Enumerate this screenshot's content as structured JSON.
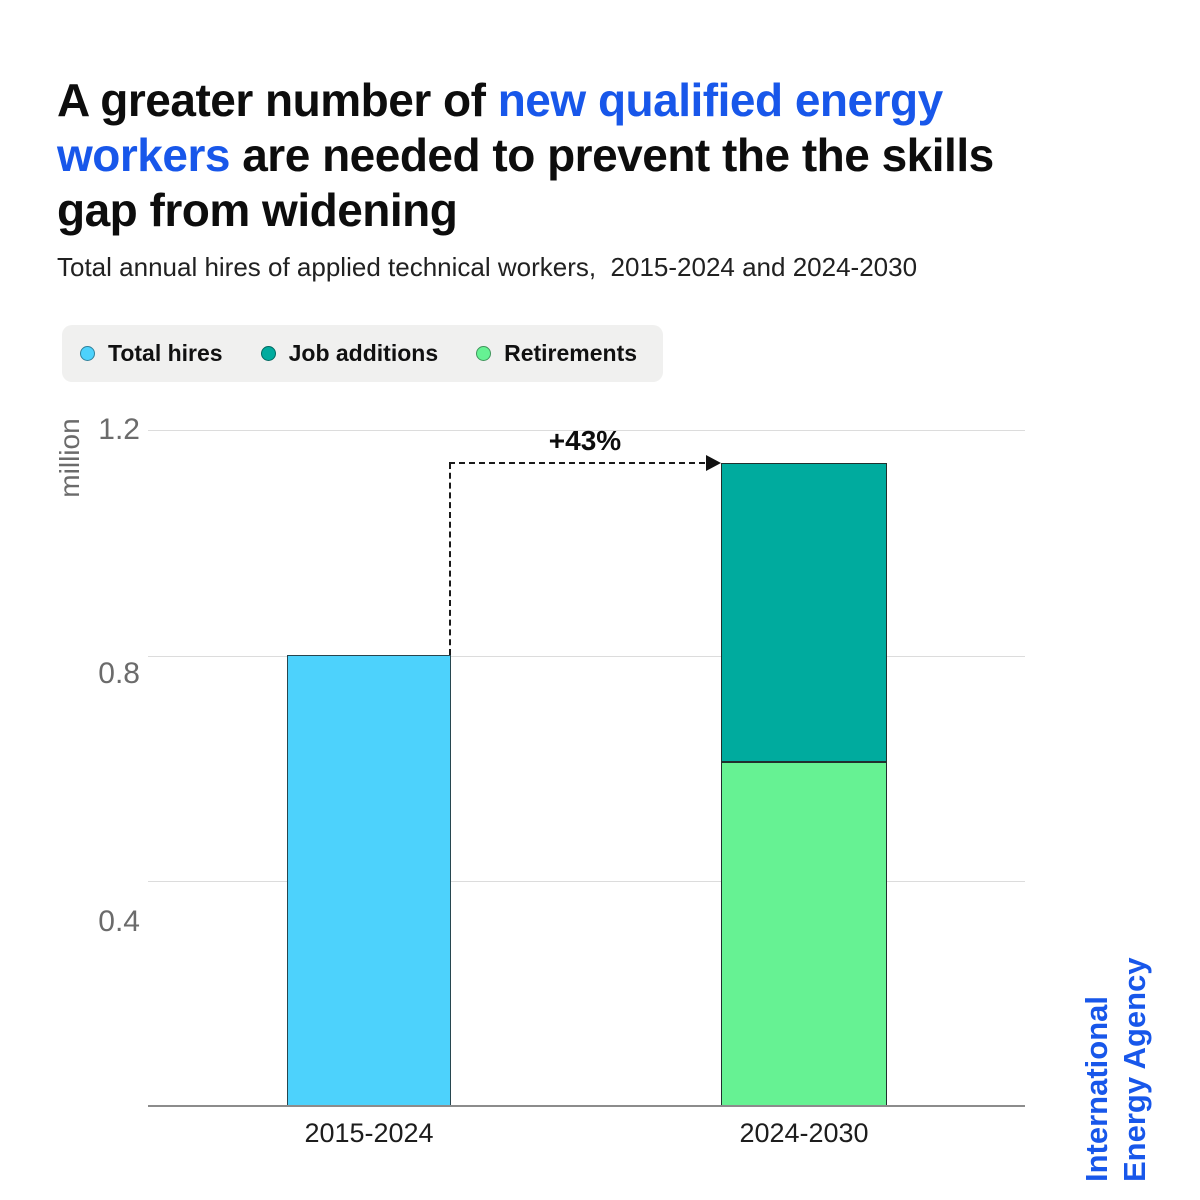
{
  "colors": {
    "accent_blue": "#1857ea",
    "bar_total_hires": "#4dd2fc",
    "bar_job_additions": "#00ab9e",
    "bar_retirements": "#66f293",
    "gridline": "#dcdcdc",
    "axis_line": "#8c8c8c",
    "tick_text": "#6b6b6b",
    "legend_background": "#f0f0ef"
  },
  "header": {
    "title_line1_dark": "A greater number of ",
    "title_line1_accent": "new qualified energy",
    "title_line2_accent": "workers",
    "title_line2_dark": " are needed to prevent the the skills",
    "title_line3_dark": "gap from widening",
    "subtitle": "Total annual hires of applied technical workers,  2015-2024 and 2024-2030"
  },
  "legend": {
    "items": [
      {
        "label": "Total hires",
        "color": "#4dd2fc"
      },
      {
        "label": "Job additions",
        "color": "#00ab9e"
      },
      {
        "label": "Retirements",
        "color": "#66f293"
      }
    ]
  },
  "axis": {
    "unit_label": "million",
    "ytick_labels": {
      "t12": "1.2",
      "t08": "0.8",
      "t04": "0.4"
    },
    "category_1": "2015-2024",
    "category_2": "2024-2030"
  },
  "annotation": {
    "label": "+43%"
  },
  "source": {
    "text": "International\nEnergy Agency"
  },
  "chart_data": {
    "type": "bar",
    "stacked": true,
    "title": "A greater number of new qualified energy workers are needed to prevent the the skills gap from widening",
    "title_highlight": "new qualified energy workers",
    "subtitle": "Total annual hires of applied technical workers, 2015-2024 and 2024-2030",
    "unit": "million",
    "categories": [
      "2015-2024",
      "2024-2030"
    ],
    "series": [
      {
        "name": "Total hires",
        "color": "#4dd2fc",
        "values": [
          0.8,
          null
        ]
      },
      {
        "name": "Job additions",
        "color": "#00ab9e",
        "values": [
          null,
          0.53
        ]
      },
      {
        "name": "Retirements",
        "color": "#66f293",
        "values": [
          null,
          0.61
        ]
      }
    ],
    "totals": [
      0.8,
      1.14
    ],
    "annotation": {
      "text": "+43%",
      "from_category": "2015-2024",
      "to_category": "2024-2030"
    },
    "yticks": [
      0.4,
      0.8,
      1.2
    ],
    "ylim": [
      0,
      1.28
    ],
    "grid": "horizontal",
    "legend_position": "top-left",
    "source": "International Energy Agency"
  }
}
